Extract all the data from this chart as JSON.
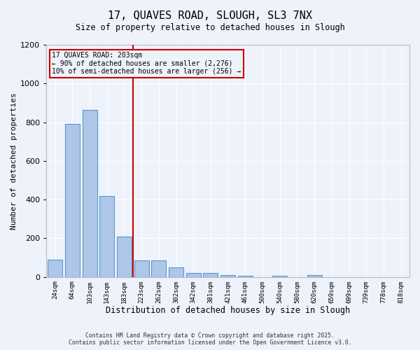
{
  "title_line1": "17, QUAVES ROAD, SLOUGH, SL3 7NX",
  "title_line2": "Size of property relative to detached houses in Slough",
  "xlabel": "Distribution of detached houses by size in Slough",
  "ylabel": "Number of detached properties",
  "categories": [
    "24sqm",
    "64sqm",
    "103sqm",
    "143sqm",
    "183sqm",
    "223sqm",
    "262sqm",
    "302sqm",
    "342sqm",
    "381sqm",
    "421sqm",
    "461sqm",
    "500sqm",
    "540sqm",
    "580sqm",
    "620sqm",
    "659sqm",
    "699sqm",
    "739sqm",
    "778sqm",
    "818sqm"
  ],
  "values": [
    90,
    790,
    865,
    420,
    210,
    85,
    85,
    50,
    20,
    20,
    10,
    5,
    0,
    5,
    0,
    10,
    0,
    0,
    0,
    0,
    0
  ],
  "bar_color": "#aec6e8",
  "bar_edge_color": "#5599cc",
  "marker_label_line1": "17 QUAVES ROAD: 203sqm",
  "marker_label_line2": "← 90% of detached houses are smaller (2,276)",
  "marker_label_line3": "10% of semi-detached houses are larger (256) →",
  "marker_color": "#cc0000",
  "ylim": [
    0,
    1200
  ],
  "yticks": [
    0,
    200,
    400,
    600,
    800,
    1000,
    1200
  ],
  "background_color": "#eef2fb",
  "grid_color": "#ffffff",
  "footer_line1": "Contains HM Land Registry data © Crown copyright and database right 2025.",
  "footer_line2": "Contains public sector information licensed under the Open Government Licence v3.0."
}
